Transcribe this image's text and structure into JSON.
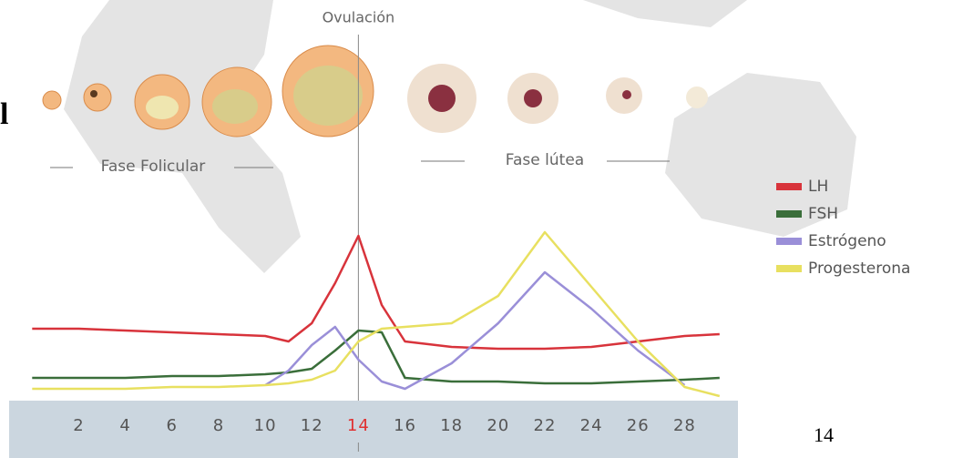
{
  "chart_data": {
    "type": "line",
    "annotations": [
      {
        "x": 14,
        "text": "Ovulación",
        "color": "#e03030"
      }
    ],
    "phases": [
      "Fase Folicular",
      "Fase lútea"
    ],
    "x": [
      0,
      2,
      4,
      6,
      8,
      10,
      11,
      12,
      13,
      14,
      15,
      16,
      18,
      20,
      22,
      24,
      26,
      28,
      29.5
    ],
    "xlim": [
      -0.6,
      29.9
    ],
    "xticks": [
      2,
      4,
      6,
      8,
      10,
      12,
      14,
      16,
      18,
      20,
      22,
      24,
      26,
      28
    ],
    "ylim": [
      0,
      100
    ],
    "legend": "right",
    "series": [
      {
        "name": "LH",
        "color": "#d8333b",
        "values": [
          37,
          37,
          36,
          35,
          34,
          33,
          30,
          40,
          62,
          88,
          50,
          30,
          27,
          26,
          26,
          27,
          30,
          33,
          34
        ]
      },
      {
        "name": "FSH",
        "color": "#3a6e3a",
        "values": [
          10,
          10,
          10,
          11,
          11,
          12,
          13,
          15,
          25,
          36,
          35,
          10,
          8,
          8,
          7,
          7,
          8,
          9,
          10
        ]
      },
      {
        "name": "Estrógeno",
        "color": "#9a8fd8",
        "values": [
          null,
          null,
          null,
          null,
          null,
          6,
          14,
          28,
          38,
          20,
          8,
          4,
          18,
          40,
          68,
          48,
          25,
          6,
          null
        ]
      },
      {
        "name": "Progesterona",
        "color": "#e8e060",
        "values": [
          4,
          4,
          4,
          5,
          5,
          6,
          7,
          9,
          14,
          30,
          37,
          38,
          40,
          55,
          90,
          60,
          30,
          5,
          0
        ]
      }
    ]
  },
  "fragment": "l",
  "page_number": "14"
}
